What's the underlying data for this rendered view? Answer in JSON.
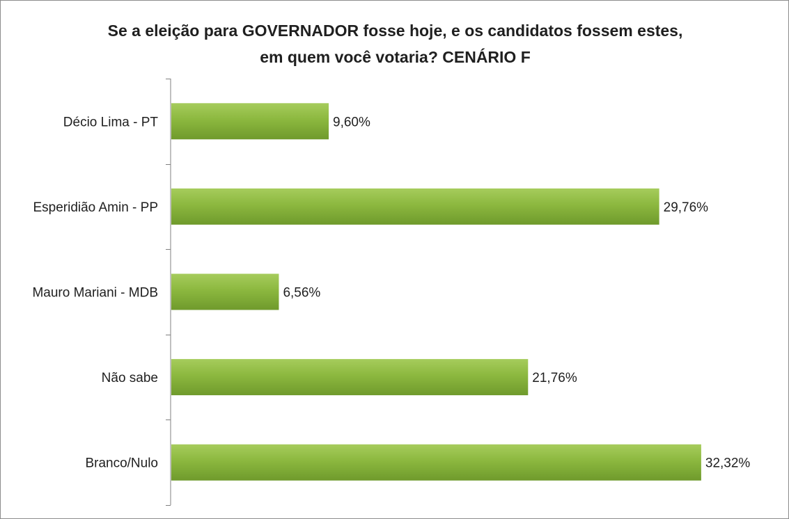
{
  "chart_data": {
    "type": "bar",
    "orientation": "horizontal",
    "title_line1": "Se a eleição para GOVERNADOR fosse hoje, e os candidatos fossem estes,",
    "title_line2": "em quem você votaria? CENÁRIO F",
    "categories": [
      "Décio Lima - PT",
      "Esperidião Amin - PP",
      "Mauro Mariani - MDB",
      "Não sabe",
      "Branco/Nulo"
    ],
    "values": [
      9.6,
      29.76,
      6.56,
      21.76,
      32.32
    ],
    "value_labels": [
      "9,60%",
      "29,76%",
      "6,56%",
      "21,76%",
      "32,32%"
    ],
    "xlim": [
      0,
      35
    ],
    "grid": false,
    "legend": "none",
    "colors": {
      "bar_light": "#a6cc5c",
      "bar_mid": "#8cb83f",
      "bar_dark": "#6f9a2c",
      "axis": "#808080"
    }
  }
}
